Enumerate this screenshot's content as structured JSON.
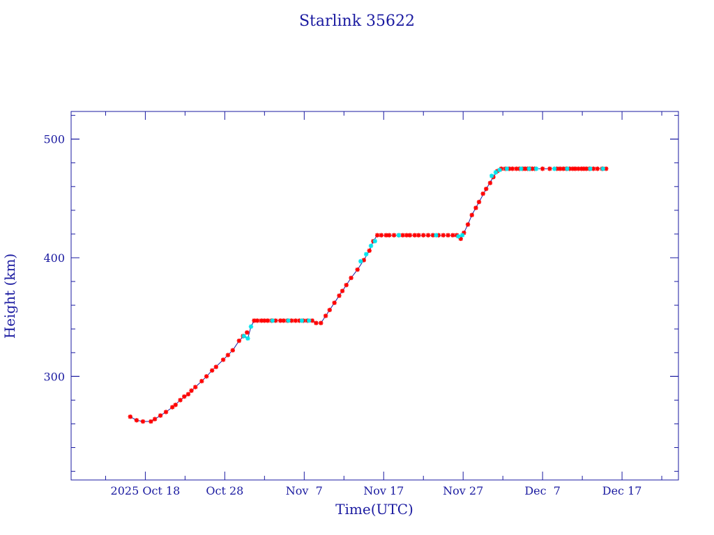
{
  "chart_data": {
    "type": "line",
    "title": "Starlink 35622",
    "xlabel": "Time(UTC)",
    "ylabel": "Height (km)",
    "x_unit": "days",
    "x_ticks": [
      {
        "day": 0,
        "label": "2025 Oct 18"
      },
      {
        "day": 10,
        "label": "Oct 28"
      },
      {
        "day": 20,
        "label": "Nov  7"
      },
      {
        "day": 30,
        "label": "Nov 17"
      },
      {
        "day": 40,
        "label": "Nov 27"
      },
      {
        "day": 50,
        "label": "Dec  7"
      },
      {
        "day": 60,
        "label": "Dec 17"
      }
    ],
    "x_range": [
      -9.34,
      67.1
    ],
    "y_ticks": [
      300,
      400,
      500
    ],
    "y_range": [
      212.7,
      523.3
    ],
    "line_color": "#1a1aa0",
    "series": [
      {
        "color": "#ff0000",
        "marker": "star",
        "points": [
          [
            -1.9,
            266
          ],
          [
            -1.1,
            263
          ],
          [
            -0.3,
            262
          ],
          [
            0.7,
            262
          ],
          [
            1.2,
            264
          ],
          [
            1.9,
            267
          ],
          [
            2.6,
            270
          ],
          [
            3.4,
            274
          ],
          [
            3.8,
            276
          ],
          [
            4.4,
            280
          ],
          [
            4.9,
            283
          ],
          [
            5.4,
            285
          ],
          [
            5.8,
            288
          ],
          [
            6.3,
            291
          ],
          [
            7.1,
            296
          ],
          [
            7.7,
            300
          ],
          [
            8.4,
            305
          ],
          [
            8.9,
            308
          ],
          [
            9.8,
            314
          ],
          [
            10.4,
            318
          ],
          [
            11.0,
            322
          ],
          [
            11.8,
            330
          ],
          [
            12.3,
            334
          ],
          [
            12.8,
            337
          ],
          [
            13.7,
            347
          ],
          [
            14.1,
            347
          ],
          [
            14.6,
            347
          ],
          [
            15.0,
            347
          ],
          [
            15.4,
            347
          ],
          [
            15.9,
            347
          ],
          [
            16.4,
            347
          ],
          [
            17.0,
            347
          ],
          [
            17.4,
            347
          ],
          [
            17.9,
            347
          ],
          [
            18.4,
            347
          ],
          [
            18.9,
            347
          ],
          [
            19.4,
            347
          ],
          [
            19.9,
            347
          ],
          [
            20.4,
            347
          ],
          [
            21.0,
            347
          ],
          [
            21.5,
            345
          ],
          [
            22.1,
            345
          ],
          [
            22.7,
            351
          ],
          [
            23.2,
            356
          ],
          [
            23.8,
            362
          ],
          [
            24.4,
            368
          ],
          [
            24.8,
            372
          ],
          [
            25.3,
            377
          ],
          [
            25.9,
            383
          ],
          [
            26.7,
            390
          ],
          [
            27.5,
            398
          ],
          [
            28.2,
            406
          ],
          [
            28.7,
            414
          ],
          [
            29.2,
            419
          ],
          [
            29.7,
            419
          ],
          [
            30.3,
            419
          ],
          [
            30.7,
            419
          ],
          [
            31.3,
            419
          ],
          [
            31.9,
            419
          ],
          [
            32.4,
            419
          ],
          [
            32.9,
            419
          ],
          [
            33.3,
            419
          ],
          [
            33.9,
            419
          ],
          [
            34.4,
            419
          ],
          [
            35.0,
            419
          ],
          [
            35.6,
            419
          ],
          [
            36.2,
            419
          ],
          [
            36.9,
            419
          ],
          [
            37.5,
            419
          ],
          [
            38.1,
            419
          ],
          [
            38.7,
            419
          ],
          [
            39.2,
            419
          ],
          [
            39.7,
            416
          ],
          [
            40.1,
            421
          ],
          [
            40.6,
            428
          ],
          [
            41.1,
            436
          ],
          [
            41.6,
            442
          ],
          [
            42.0,
            447
          ],
          [
            42.5,
            454
          ],
          [
            42.9,
            458
          ],
          [
            43.4,
            463
          ],
          [
            43.8,
            468
          ],
          [
            44.3,
            473
          ],
          [
            44.8,
            475
          ],
          [
            45.3,
            475
          ],
          [
            45.8,
            475
          ],
          [
            46.2,
            475
          ],
          [
            46.7,
            475
          ],
          [
            47.1,
            475
          ],
          [
            47.5,
            475
          ],
          [
            47.8,
            475
          ],
          [
            48.1,
            475
          ],
          [
            48.4,
            475
          ],
          [
            48.7,
            475
          ],
          [
            49.0,
            475
          ],
          [
            50.0,
            475
          ],
          [
            50.9,
            475
          ],
          [
            51.8,
            475
          ],
          [
            52.2,
            475
          ],
          [
            52.6,
            475
          ],
          [
            53.0,
            475
          ],
          [
            53.4,
            475
          ],
          [
            53.8,
            475
          ],
          [
            54.1,
            475
          ],
          [
            54.5,
            475
          ],
          [
            54.9,
            475
          ],
          [
            55.2,
            475
          ],
          [
            55.5,
            475
          ],
          [
            55.9,
            475
          ],
          [
            56.4,
            475
          ],
          [
            56.9,
            475
          ],
          [
            57.5,
            475
          ],
          [
            58.0,
            475
          ]
        ]
      },
      {
        "color": "#00e5ee",
        "marker": "star",
        "points": [
          [
            12.4,
            334
          ],
          [
            12.9,
            332
          ],
          [
            13.3,
            342
          ],
          [
            16.0,
            347
          ],
          [
            18.0,
            347
          ],
          [
            19.7,
            347
          ],
          [
            20.6,
            347
          ],
          [
            27.1,
            397
          ],
          [
            27.8,
            403
          ],
          [
            28.4,
            410
          ],
          [
            28.9,
            414
          ],
          [
            31.9,
            419
          ],
          [
            36.6,
            419
          ],
          [
            39.4,
            418
          ],
          [
            39.9,
            419
          ],
          [
            43.6,
            469
          ],
          [
            44.1,
            472
          ],
          [
            44.6,
            474
          ],
          [
            45.5,
            475
          ],
          [
            47.3,
            475
          ],
          [
            48.3,
            475
          ],
          [
            49.2,
            475
          ],
          [
            51.5,
            475
          ],
          [
            53.1,
            475
          ],
          [
            56.0,
            475
          ],
          [
            57.6,
            475
          ]
        ]
      }
    ],
    "line_path": [
      [
        -1.9,
        266
      ],
      [
        -1.1,
        263
      ],
      [
        -0.3,
        262
      ],
      [
        0.7,
        262
      ],
      [
        1.2,
        264
      ],
      [
        1.9,
        267
      ],
      [
        2.6,
        270
      ],
      [
        3.4,
        274
      ],
      [
        4.4,
        280
      ],
      [
        5.4,
        285
      ],
      [
        6.3,
        291
      ],
      [
        7.1,
        296
      ],
      [
        7.7,
        300
      ],
      [
        8.4,
        305
      ],
      [
        9.8,
        314
      ],
      [
        11.0,
        322
      ],
      [
        11.8,
        330
      ],
      [
        12.4,
        334
      ],
      [
        12.9,
        332
      ],
      [
        13.3,
        342
      ],
      [
        13.7,
        347
      ],
      [
        14.6,
        347
      ],
      [
        16.4,
        347
      ],
      [
        18.4,
        347
      ],
      [
        20.4,
        347
      ],
      [
        21.0,
        347
      ],
      [
        21.5,
        345
      ],
      [
        22.1,
        345
      ],
      [
        22.7,
        351
      ],
      [
        23.8,
        362
      ],
      [
        24.8,
        372
      ],
      [
        25.9,
        383
      ],
      [
        26.7,
        390
      ],
      [
        27.5,
        398
      ],
      [
        28.2,
        406
      ],
      [
        28.7,
        414
      ],
      [
        29.2,
        419
      ],
      [
        31.3,
        419
      ],
      [
        33.9,
        419
      ],
      [
        36.2,
        419
      ],
      [
        38.7,
        419
      ],
      [
        39.4,
        418
      ],
      [
        39.7,
        416
      ],
      [
        40.1,
        421
      ],
      [
        40.6,
        428
      ],
      [
        41.1,
        436
      ],
      [
        42.0,
        447
      ],
      [
        42.9,
        458
      ],
      [
        43.8,
        468
      ],
      [
        44.3,
        473
      ],
      [
        44.8,
        475
      ],
      [
        46.7,
        475
      ],
      [
        49.0,
        475
      ],
      [
        52.2,
        475
      ],
      [
        55.2,
        475
      ],
      [
        58.0,
        475
      ]
    ]
  }
}
